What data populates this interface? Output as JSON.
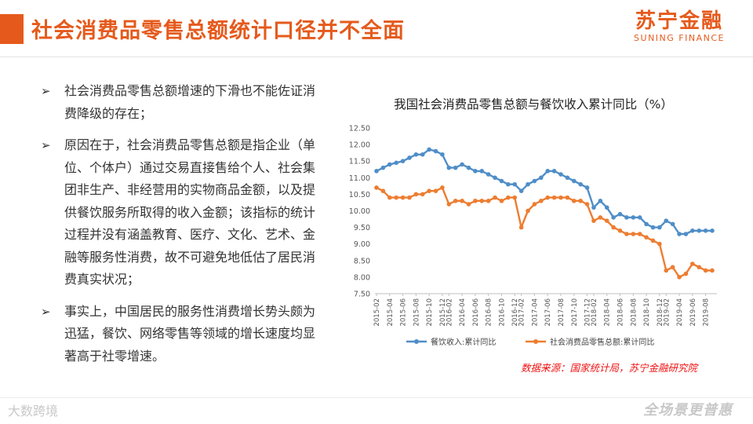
{
  "header": {
    "title": "社会消费品零售总额统计口径并不全面",
    "logo_cn": "苏宁金融",
    "logo_en": "SUNING FINANCE"
  },
  "bullets": [
    "社会消费品零售总额增速的下滑也不能佐证消费降级的存在；",
    "原因在于，社会消费品零售总额是指企业（单位、个体户）通过交易直接售给个人、社会集团非生产、非经营用的实物商品金额，以及提供餐饮服务所取得的收入金额；该指标的统计过程并没有涵盖教育、医疗、文化、艺术、金融等服务性消费，故不可避免地低估了居民消费真实状况；",
    "事实上，中国居民的服务性消费增长势头颇为迅猛，餐饮、网络零售等领域的增长速度均显著高于社零增速。"
  ],
  "bullet_icon": "arrow-bullet-icon",
  "source": "数据来源：国家统计局，苏宁金融研究院",
  "watermark": "大数跨境",
  "slogan": "全场景更普惠",
  "colors": {
    "accent": "#e55a1c",
    "series1": "#4f8ec8",
    "series2": "#ed7d31",
    "source": "#ee1111"
  },
  "chart_data": {
    "type": "line",
    "title": "我国社会消费品零售总额与餐饮收入累计同比（%）",
    "ylim": [
      7.5,
      12.5
    ],
    "yticks": [
      "12.50",
      "12.00",
      "11.50",
      "11.00",
      "10.50",
      "10.00",
      "9.50",
      "9.00",
      "8.50",
      "8.00",
      "7.50"
    ],
    "x": [
      "2015-02",
      "2015-03",
      "2015-04",
      "2015-05",
      "2015-06",
      "2015-07",
      "2015-08",
      "2015-09",
      "2015-10",
      "2015-11",
      "2015-12",
      "2016-02",
      "2016-03",
      "2016-04",
      "2016-05",
      "2016-06",
      "2016-07",
      "2016-08",
      "2016-09",
      "2016-10",
      "2016-11",
      "2016-12",
      "2017-02",
      "2017-03",
      "2017-04",
      "2017-05",
      "2017-06",
      "2017-07",
      "2017-08",
      "2017-09",
      "2017-10",
      "2017-11",
      "2017-12",
      "2018-02",
      "2018-03",
      "2018-04",
      "2018-05",
      "2018-06",
      "2018-07",
      "2018-08",
      "2018-09",
      "2018-10",
      "2018-11",
      "2018-12",
      "2019-02",
      "2019-03",
      "2019-04",
      "2019-05",
      "2019-06",
      "2019-07",
      "2019-08",
      "2019-09"
    ],
    "xticks": [
      "2015-02",
      "2015-04",
      "2015-06",
      "2015-08",
      "2015-10",
      "2015-12",
      "2016-02",
      "2016-04",
      "2016-06",
      "2016-08",
      "2016-10",
      "2016-12",
      "2017-02",
      "2017-04",
      "2017-06",
      "2017-08",
      "2017-10",
      "2017-12",
      "2018-02",
      "2018-04",
      "2018-06",
      "2018-08",
      "2018-10",
      "2018-12",
      "2019-02",
      "2019-04",
      "2019-06",
      "2019-08"
    ],
    "series": [
      {
        "name": "餐饮收入:累计同比",
        "color": "#4f8ec8",
        "values": [
          11.2,
          11.3,
          11.4,
          11.45,
          11.5,
          11.6,
          11.7,
          11.7,
          11.85,
          11.8,
          11.7,
          11.3,
          11.3,
          11.4,
          11.3,
          11.2,
          11.2,
          11.1,
          11.0,
          10.9,
          10.8,
          10.8,
          10.6,
          10.8,
          10.9,
          11.0,
          11.2,
          11.2,
          11.1,
          11.0,
          10.9,
          10.8,
          10.7,
          10.1,
          10.3,
          10.1,
          9.8,
          9.9,
          9.8,
          9.8,
          9.8,
          9.6,
          9.5,
          9.5,
          9.7,
          9.6,
          9.3,
          9.3,
          9.4,
          9.4,
          9.4,
          9.4
        ]
      },
      {
        "name": "社会消费品零售总额:累计同比",
        "color": "#ed7d31",
        "values": [
          10.7,
          10.6,
          10.4,
          10.4,
          10.4,
          10.4,
          10.5,
          10.5,
          10.6,
          10.6,
          10.7,
          10.2,
          10.3,
          10.3,
          10.2,
          10.3,
          10.3,
          10.3,
          10.4,
          10.3,
          10.4,
          10.4,
          9.5,
          10.0,
          10.2,
          10.3,
          10.4,
          10.4,
          10.4,
          10.4,
          10.3,
          10.3,
          10.2,
          9.7,
          9.8,
          9.7,
          9.5,
          9.4,
          9.3,
          9.3,
          9.3,
          9.2,
          9.1,
          9.0,
          8.2,
          8.3,
          8.0,
          8.1,
          8.4,
          8.3,
          8.2,
          8.2
        ]
      }
    ],
    "legend_position": "bottom",
    "grid": false
  }
}
